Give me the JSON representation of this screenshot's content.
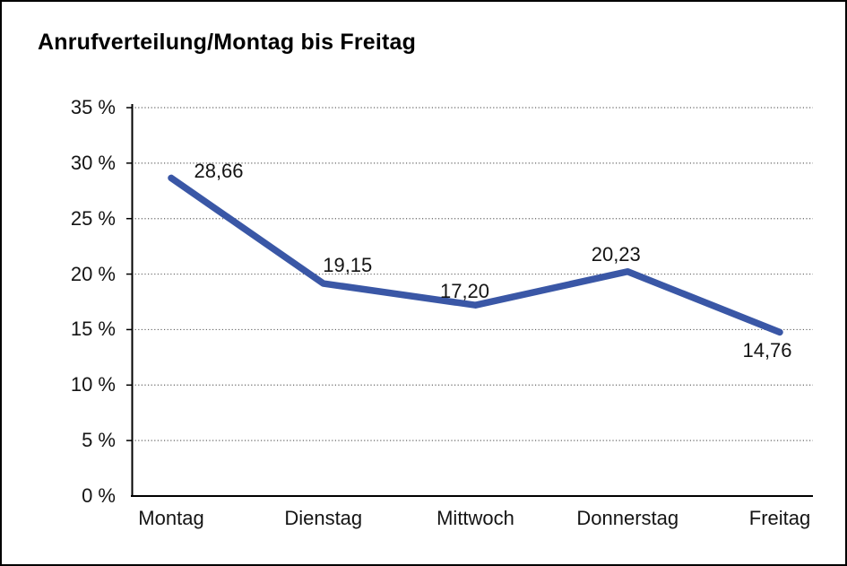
{
  "page": {
    "background": "#ffffff",
    "frame_border_color": "#000000"
  },
  "chart_data": {
    "type": "line",
    "title": "Anrufverteilung/Montag bis Freitag",
    "categories": [
      "Montag",
      "Dienstag",
      "Mittwoch",
      "Donnerstag",
      "Freitag"
    ],
    "values": [
      28.66,
      19.15,
      17.2,
      20.23,
      14.76
    ],
    "value_labels": [
      "28,66",
      "19,15",
      "17,20",
      "20,23",
      "14,76"
    ],
    "xlabel": "",
    "ylabel": "",
    "ylim": [
      0,
      35
    ],
    "ytick_step": 5,
    "ytick_labels": [
      "0 %",
      "5 %",
      "10 %",
      "15 %",
      "20 %",
      "25 %",
      "30 %",
      "35 %"
    ],
    "grid": "horizontal-dotted",
    "legend": "none",
    "line_color": "#3A57A6",
    "grid_color": "#666666",
    "axis_color": "#000000",
    "text_color": "#141414"
  }
}
